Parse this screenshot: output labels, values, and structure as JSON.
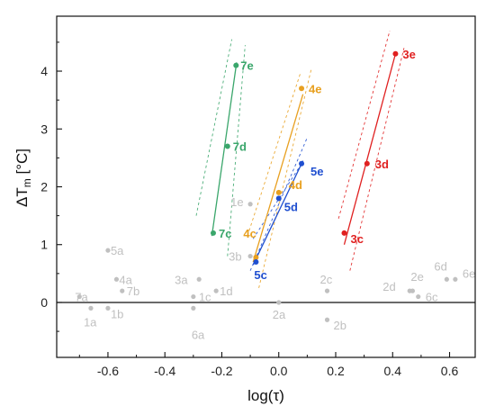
{
  "chart_data": {
    "type": "scatter",
    "title": "",
    "xlabel": "log(τ)",
    "ylabel_main": "ΔT",
    "ylabel_sub": "m",
    "ylabel_unit": " [°C]",
    "xlim": [
      -0.78,
      0.69
    ],
    "ylim": [
      -0.95,
      4.95
    ],
    "xticks": [
      -0.6,
      -0.4,
      -0.2,
      0.0,
      0.2,
      0.4,
      0.6
    ],
    "xtick_labels": [
      "-0.6",
      "-0.4",
      "-0.2",
      "0.0",
      "0.2",
      "0.4",
      "0.6"
    ],
    "yticks": [
      0,
      1,
      2,
      3,
      4
    ],
    "ytick_labels": [
      "0",
      "1",
      "2",
      "3",
      "4"
    ],
    "zero_line": true,
    "grid": false,
    "colors": {
      "gray": "#c0c0c0",
      "green": "#3aa66b",
      "orange": "#e8a020",
      "blue": "#1f4fd0",
      "red": "#e02020"
    },
    "series": [
      {
        "group": "green",
        "points": [
          {
            "label": "7c",
            "x": -0.23,
            "y": 1.2
          },
          {
            "label": "7d",
            "x": -0.18,
            "y": 2.7
          },
          {
            "label": "7e",
            "x": -0.15,
            "y": 4.1
          }
        ],
        "fit": [
          [
            -0.235,
            1.15
          ],
          [
            -0.148,
            4.15
          ]
        ],
        "band_a": [
          [
            -0.29,
            1.5
          ],
          [
            -0.165,
            4.55
          ]
        ],
        "band_b": [
          [
            -0.18,
            0.8
          ],
          [
            -0.118,
            4.45
          ]
        ]
      },
      {
        "group": "orange",
        "points": [
          {
            "label": "4c",
            "x": -0.08,
            "y": 0.78
          },
          {
            "label": "4d",
            "x": 0.0,
            "y": 1.9
          },
          {
            "label": "4e",
            "x": 0.08,
            "y": 3.7
          }
        ],
        "fit": [
          [
            -0.09,
            0.7
          ],
          [
            0.085,
            3.6
          ]
        ],
        "band_a": [
          [
            -0.07,
            0.25
          ],
          [
            0.115,
            4.05
          ]
        ],
        "band_b": [
          [
            -0.11,
            1.15
          ],
          [
            0.075,
            3.95
          ]
        ]
      },
      {
        "group": "blue",
        "points": [
          {
            "label": "5c",
            "x": -0.08,
            "y": 0.7
          },
          {
            "label": "5d",
            "x": 0.0,
            "y": 1.8
          },
          {
            "label": "5e",
            "x": 0.08,
            "y": 2.4
          }
        ],
        "fit": [
          [
            -0.09,
            0.65
          ],
          [
            0.085,
            2.45
          ]
        ],
        "band_a": [
          [
            -0.1,
            0.55
          ],
          [
            0.1,
            2.85
          ]
        ],
        "band_b": [
          [
            -0.09,
            1.1
          ],
          [
            0.08,
            2.4
          ]
        ]
      },
      {
        "group": "red",
        "points": [
          {
            "label": "3c",
            "x": 0.23,
            "y": 1.2
          },
          {
            "label": "3d",
            "x": 0.31,
            "y": 2.4
          },
          {
            "label": "3e",
            "x": 0.41,
            "y": 4.3
          }
        ],
        "fit": [
          [
            0.23,
            1.0
          ],
          [
            0.41,
            4.3
          ]
        ],
        "band_a": [
          [
            0.21,
            1.45
          ],
          [
            0.39,
            4.7
          ]
        ],
        "band_b": [
          [
            0.25,
            0.55
          ],
          [
            0.44,
            4.4
          ]
        ]
      },
      {
        "group": "gray",
        "points": [
          {
            "label": "7a",
            "x": -0.7,
            "y": 0.1
          },
          {
            "label": "1a",
            "x": -0.66,
            "y": -0.1
          },
          {
            "label": "5a",
            "x": -0.6,
            "y": 0.9
          },
          {
            "label": "1b",
            "x": -0.6,
            "y": -0.1
          },
          {
            "label": "4a",
            "x": -0.57,
            "y": 0.4
          },
          {
            "label": "7b",
            "x": -0.55,
            "y": 0.2
          },
          {
            "label": "3a",
            "x": -0.28,
            "y": 0.4
          },
          {
            "label": "1c",
            "x": -0.3,
            "y": 0.1
          },
          {
            "label": "6a",
            "x": -0.3,
            "y": -0.1
          },
          {
            "label": "1d",
            "x": -0.22,
            "y": 0.2
          },
          {
            "label": "3b",
            "x": -0.1,
            "y": 0.8
          },
          {
            "label": "1e",
            "x": -0.1,
            "y": 1.7
          },
          {
            "label": "2a",
            "x": 0.0,
            "y": 0.0
          },
          {
            "label": "2c",
            "x": 0.17,
            "y": 0.2
          },
          {
            "label": "2b",
            "x": 0.17,
            "y": -0.3
          },
          {
            "label": "2d",
            "x": 0.46,
            "y": 0.2
          },
          {
            "label": "2e",
            "x": 0.47,
            "y": 0.2
          },
          {
            "label": "6c",
            "x": 0.49,
            "y": 0.1
          },
          {
            "label": "6d",
            "x": 0.59,
            "y": 0.4
          },
          {
            "label": "6e",
            "x": 0.62,
            "y": 0.4
          }
        ]
      }
    ]
  }
}
